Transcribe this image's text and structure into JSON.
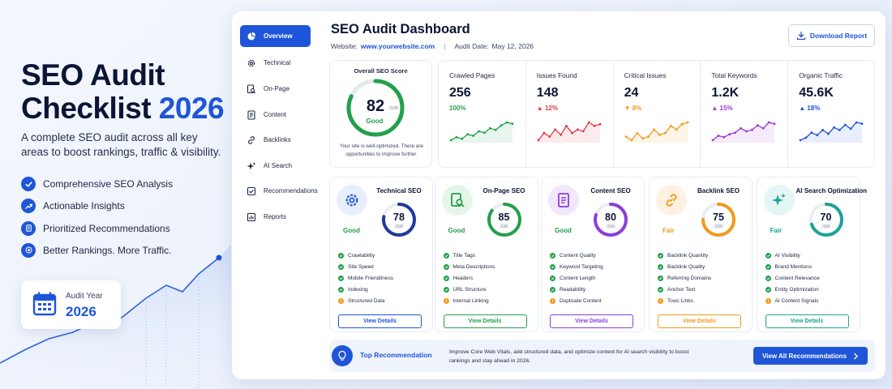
{
  "hero": {
    "title_line1": "SEO Audit",
    "title_line2": "Checklist",
    "title_year": "2026",
    "subtitle": "A complete SEO audit across all key areas to boost rankings, traffic & visibility.",
    "features": [
      {
        "label": "Comprehensive SEO Analysis",
        "icon": "check-icon"
      },
      {
        "label": "Actionable Insights",
        "icon": "trend-icon"
      },
      {
        "label": "Prioritized Recommendations",
        "icon": "document-icon"
      },
      {
        "label": "Better Rankings. More Traffic.",
        "icon": "target-icon"
      }
    ],
    "year_card": {
      "label": "Audit Year",
      "value": "2026"
    }
  },
  "sidebar": {
    "items": [
      {
        "label": "Overview",
        "icon": "pie-chart-icon",
        "active": true
      },
      {
        "label": "Technical",
        "icon": "gear-icon",
        "active": false
      },
      {
        "label": "On-Page",
        "icon": "page-search-icon",
        "active": false
      },
      {
        "label": "Content",
        "icon": "document-icon",
        "active": false
      },
      {
        "label": "Backlinks",
        "icon": "link-icon",
        "active": false
      },
      {
        "label": "AI Search",
        "icon": "sparkle-icon",
        "active": false
      },
      {
        "label": "Recommendations",
        "icon": "checklist-icon",
        "active": false
      },
      {
        "label": "Reports",
        "icon": "bar-chart-icon",
        "active": false
      }
    ]
  },
  "header": {
    "title": "SEO Audit Dashboard",
    "website_label": "Website:",
    "website_value": "www.yourwebsite.com",
    "separator": "|",
    "date_label": "Audit Date:",
    "date_value": "May 12, 2026",
    "download_label": "Download Report"
  },
  "overall": {
    "title": "Overall SEO Score",
    "score": "82",
    "score_fraction": 0.82,
    "denominator": "/100",
    "grade": "Good",
    "note": "Your site is well-optimized. There are opportunities to improve further."
  },
  "stats": [
    {
      "label": "Crawled Pages",
      "value": "256",
      "change": "100%",
      "direction": "none",
      "color": "#22a04b",
      "trend": [
        5,
        6,
        5.5,
        7,
        6.5,
        8,
        7.5,
        9,
        8.5,
        10,
        11,
        10.5
      ]
    },
    {
      "label": "Issues Found",
      "value": "148",
      "change": "12%",
      "direction": "up",
      "color": "#e53945",
      "trend": [
        5,
        7,
        6,
        8,
        6.5,
        9,
        7,
        8,
        7.5,
        10,
        9,
        9.5
      ]
    },
    {
      "label": "Critical Issues",
      "value": "24",
      "change": "8%",
      "direction": "down",
      "color": "#f29a1b",
      "trend": [
        6,
        5,
        7,
        5.5,
        6,
        8,
        6.5,
        7,
        9,
        8,
        9.5,
        10
      ]
    },
    {
      "label": "Total Keywords",
      "value": "1.2K",
      "change": "15%",
      "direction": "up",
      "color": "#9b3ad8",
      "trend": [
        5,
        6.5,
        6,
        7,
        7.5,
        9,
        8,
        8.5,
        10,
        9,
        11,
        10.5
      ]
    },
    {
      "label": "Organic Traffic",
      "value": "45.6K",
      "change": "18%",
      "direction": "up",
      "color": "#1f55d8",
      "trend": [
        5,
        6,
        8,
        7,
        9,
        7.5,
        10,
        9,
        11,
        9.5,
        12,
        11.5
      ]
    }
  ],
  "categories": [
    {
      "title": "Technical SEO",
      "icon": "gear-icon",
      "score": "78",
      "score_fraction": 0.78,
      "denominator": "/100",
      "grade": "Good",
      "grade_color": "#22a04b",
      "accent": "#1f3a9b",
      "icon_bg": "#e8eefc",
      "icon_color": "#1f55d8",
      "button": "View Details",
      "button_color": "#1f55d8",
      "items": [
        {
          "label": "Crawlability",
          "status": "ok"
        },
        {
          "label": "Site Speed",
          "status": "ok"
        },
        {
          "label": "Mobile Friendliness",
          "status": "ok"
        },
        {
          "label": "Indexing",
          "status": "ok"
        },
        {
          "label": "Structured Data",
          "status": "warn"
        }
      ]
    },
    {
      "title": "On-Page SEO",
      "icon": "page-search-icon",
      "score": "85",
      "score_fraction": 0.85,
      "denominator": "/100",
      "grade": "Good",
      "grade_color": "#22a04b",
      "accent": "#22a04b",
      "icon_bg": "#e6f5ea",
      "icon_color": "#22a04b",
      "button": "View Details",
      "button_color": "#22a04b",
      "items": [
        {
          "label": "Title Tags",
          "status": "ok"
        },
        {
          "label": "Meta Descriptions",
          "status": "ok"
        },
        {
          "label": "Headers",
          "status": "ok"
        },
        {
          "label": "URL Structure",
          "status": "ok"
        },
        {
          "label": "Internal Linking",
          "status": "warn"
        }
      ]
    },
    {
      "title": "Content SEO",
      "icon": "document-icon",
      "score": "80",
      "score_fraction": 0.8,
      "denominator": "/100",
      "grade": "Good",
      "grade_color": "#22a04b",
      "accent": "#8b3fd9",
      "icon_bg": "#f1e8fc",
      "icon_color": "#8b3fd9",
      "button": "View Details",
      "button_color": "#8b3fd9",
      "items": [
        {
          "label": "Content Quality",
          "status": "ok"
        },
        {
          "label": "Keyword Targeting",
          "status": "ok"
        },
        {
          "label": "Content Length",
          "status": "ok"
        },
        {
          "label": "Readability",
          "status": "ok"
        },
        {
          "label": "Duplicate Content",
          "status": "warn"
        }
      ]
    },
    {
      "title": "Backlink SEO",
      "icon": "link-icon",
      "score": "75",
      "score_fraction": 0.75,
      "denominator": "/100",
      "grade": "Fair",
      "grade_color": "#f29a1b",
      "accent": "#f29a1b",
      "icon_bg": "#fdf1e2",
      "icon_color": "#f29a1b",
      "button": "View Details",
      "button_color": "#f29a1b",
      "items": [
        {
          "label": "Backlink Quantity",
          "status": "ok"
        },
        {
          "label": "Backlink Quality",
          "status": "ok"
        },
        {
          "label": "Referring Domains",
          "status": "ok"
        },
        {
          "label": "Anchor Text",
          "status": "ok"
        },
        {
          "label": "Toxic Links",
          "status": "warn"
        }
      ]
    },
    {
      "title": "AI Search Optimization",
      "icon": "sparkle-icon",
      "score": "70",
      "score_fraction": 0.7,
      "denominator": "/100",
      "grade": "Fair",
      "grade_color": "#1aa396",
      "accent": "#1aa396",
      "icon_bg": "#e3f6f3",
      "icon_color": "#1aa396",
      "button": "View Details",
      "button_color": "#1aa396",
      "items": [
        {
          "label": "AI Visibility",
          "status": "ok"
        },
        {
          "label": "Brand Mentions",
          "status": "ok"
        },
        {
          "label": "Content Relevance",
          "status": "ok"
        },
        {
          "label": "Entity Optimization",
          "status": "ok"
        },
        {
          "label": "AI Content Signals",
          "status": "warn"
        }
      ]
    }
  ],
  "recommendation": {
    "title": "Top Recommendation",
    "text": "Improve Core Web Vitals, add structured data, and optimize content for AI search visibility to boost rankings and stay ahead in 2026.",
    "button": "View All Recommendations"
  },
  "colors": {
    "brand": "#1f55d8",
    "ok": "#22a04b",
    "warn": "#f29a1b",
    "up": "#e53945"
  }
}
